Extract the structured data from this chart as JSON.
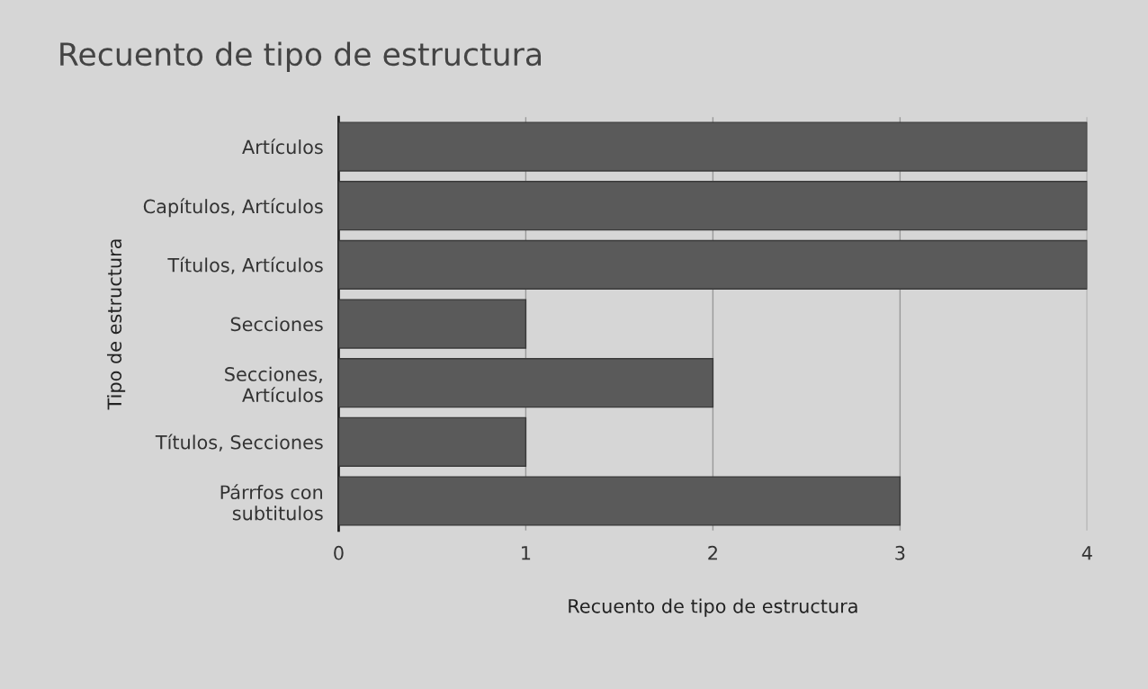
{
  "chart_data": {
    "type": "bar",
    "orientation": "horizontal",
    "title": "Recuento de tipo de estructura",
    "xlabel": "Recuento de tipo de estructura",
    "ylabel": "Tipo de estructura",
    "categories": [
      "Artículos",
      "Capítulos, Artículos",
      "Títulos, Artículos",
      "Secciones",
      "Secciones,\nArtículos",
      "Títulos, Secciones",
      "Párrfos con\nsubtitulos"
    ],
    "values": [
      4,
      4,
      4,
      1,
      2,
      1,
      3
    ],
    "color": "#5a5a5a",
    "xlim": [
      0,
      4
    ],
    "xticks": [
      0,
      1,
      2,
      3,
      4
    ],
    "grid": "x",
    "legend": false
  }
}
